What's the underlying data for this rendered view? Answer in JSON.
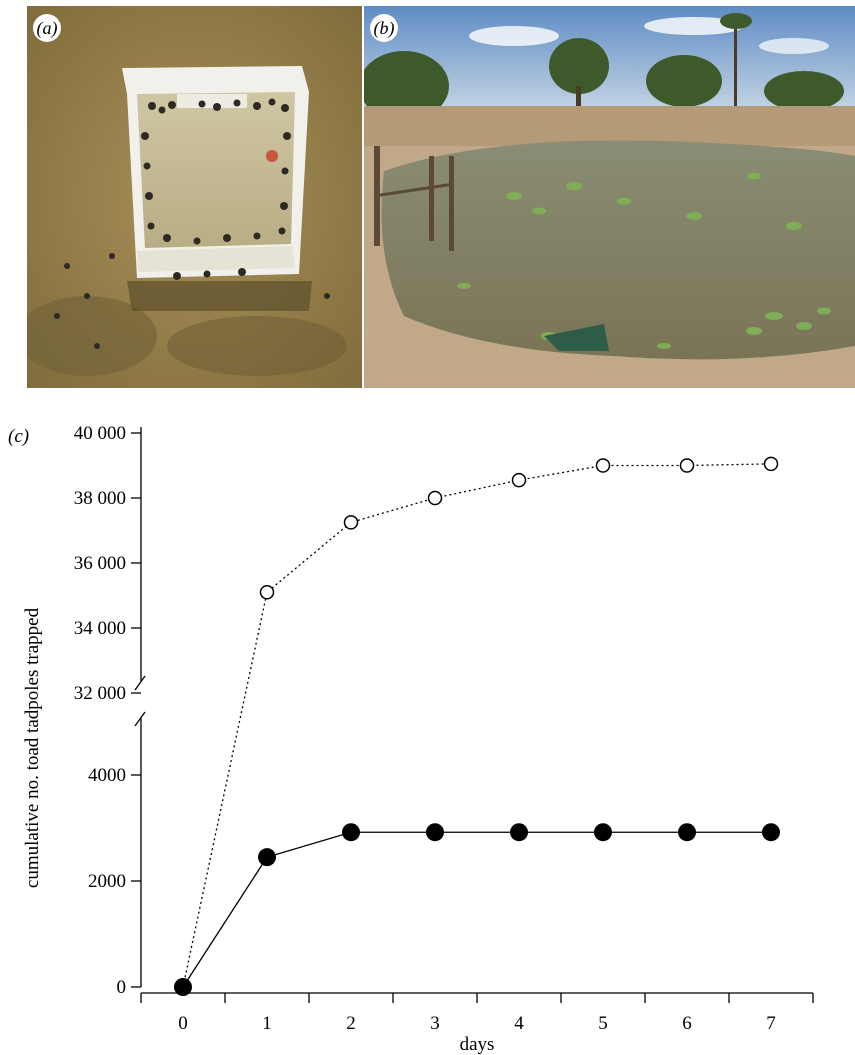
{
  "panels": {
    "a": {
      "label": "(a)"
    },
    "b": {
      "label": "(b)"
    },
    "c": {
      "label": "(c)"
    }
  },
  "colors": {
    "water": "#9d8550",
    "box": "#eeeeea",
    "sky": "#7fa7cf",
    "pond": "#7e8363",
    "lily": "#7fae57",
    "trap": "#3c6b54",
    "marker": "#000000"
  },
  "chart_data": {
    "type": "line",
    "xlabel": "days",
    "ylabel": "cumulative no. toad tadpoles trapped",
    "x": [
      0,
      1,
      2,
      3,
      4,
      5,
      6,
      7
    ],
    "xticks": [
      "0",
      "1",
      "2",
      "3",
      "4",
      "5",
      "6",
      "7"
    ],
    "y_broken_axis": true,
    "ylim_lower": [
      0,
      5000
    ],
    "ylim_upper": [
      32000,
      40000
    ],
    "yticks_lower": [
      0,
      2000,
      4000
    ],
    "yticks_lower_labels": [
      "0",
      "2000",
      "4000"
    ],
    "yticks_upper": [
      32000,
      34000,
      36000,
      38000,
      40000
    ],
    "yticks_upper_labels": [
      "32 000",
      "34 000",
      "36 000",
      "38 000",
      "40 000"
    ],
    "series": [
      {
        "marker": "open-circle",
        "line": "dotted",
        "values": [
          0,
          35100,
          37250,
          38000,
          38550,
          39000,
          39000,
          39050
        ]
      },
      {
        "marker": "filled-circle",
        "line": "solid",
        "values": [
          0,
          2450,
          2920,
          2920,
          2920,
          2920,
          2920,
          2920
        ]
      }
    ]
  }
}
